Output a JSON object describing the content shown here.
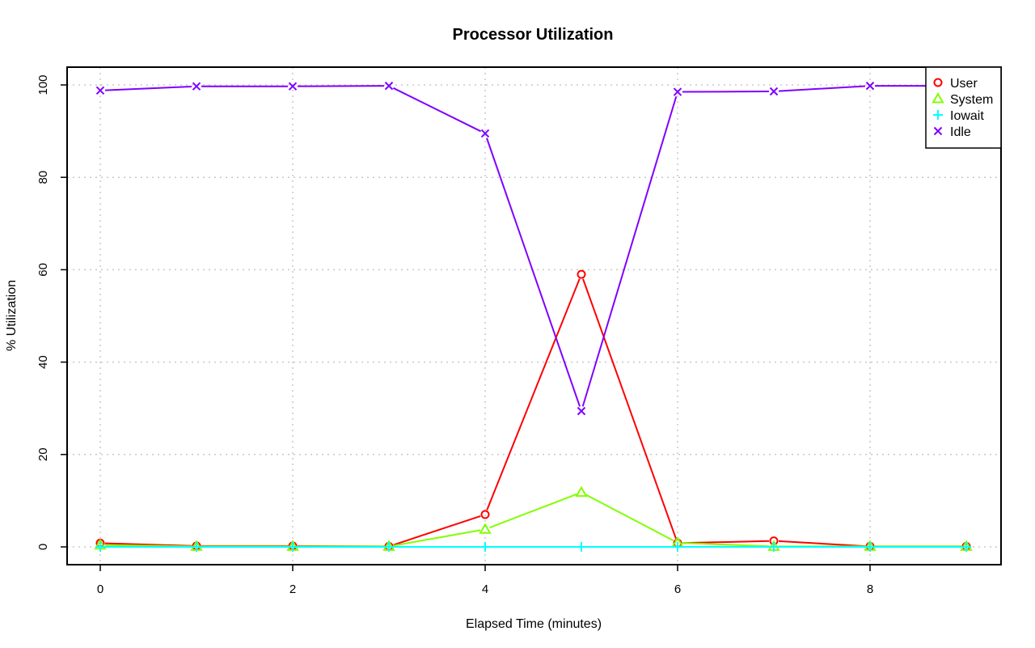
{
  "chart_data": {
    "type": "line",
    "title": "Processor Utilization",
    "xlabel": "Elapsed Time (minutes)",
    "ylabel": "% Utilization",
    "xlim": [
      0,
      9
    ],
    "ylim": [
      0,
      100
    ],
    "x_ticks": [
      0,
      2,
      4,
      6,
      8
    ],
    "y_ticks": [
      0,
      20,
      40,
      60,
      80,
      100
    ],
    "grid": true,
    "legend_position": "top-right",
    "x": [
      0,
      1,
      2,
      3,
      4,
      5,
      6,
      7,
      8,
      9
    ],
    "series": [
      {
        "name": "User",
        "color": "#ff0000",
        "marker": "circle",
        "values": [
          0.8,
          0.2,
          0.2,
          0.1,
          7.0,
          59.0,
          0.8,
          1.3,
          0.1,
          0.1
        ]
      },
      {
        "name": "System",
        "color": "#80ff00",
        "marker": "triangle",
        "values": [
          0.4,
          0.1,
          0.1,
          0.1,
          3.8,
          11.8,
          0.9,
          0.1,
          0.1,
          0.1
        ]
      },
      {
        "name": "Iowait",
        "color": "#00ffff",
        "marker": "plus",
        "values": [
          0.0,
          0.0,
          0.0,
          0.0,
          0.0,
          0.0,
          0.0,
          0.0,
          0.0,
          0.0
        ]
      },
      {
        "name": "Idle",
        "color": "#8000ff",
        "marker": "x",
        "values": [
          98.8,
          99.7,
          99.7,
          99.8,
          89.5,
          29.4,
          98.5,
          98.6,
          99.8,
          99.8
        ]
      }
    ]
  }
}
